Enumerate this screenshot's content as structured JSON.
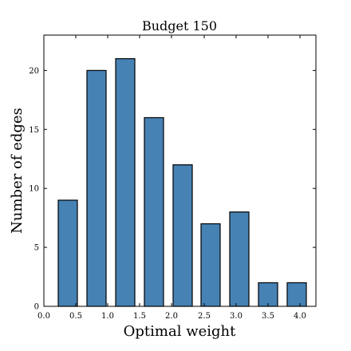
{
  "chart_data": {
    "type": "bar",
    "title": "Budget 150",
    "xlabel": "Optimal weight",
    "ylabel": "Number of edges",
    "x_tick_labels": [
      "0.0",
      "0.5",
      "1.0",
      "1.5",
      "2.0",
      "2.5",
      "3.0",
      "3.5",
      "4.0"
    ],
    "x_ticks": [
      0.0,
      0.5,
      1.0,
      1.5,
      2.0,
      2.5,
      3.0,
      3.5,
      4.0
    ],
    "y_tick_labels": [
      "0",
      "5",
      "10",
      "15",
      "20"
    ],
    "y_ticks": [
      0,
      5,
      10,
      15,
      20
    ],
    "xlim": [
      0.0,
      4.25
    ],
    "ylim": [
      0,
      23
    ],
    "bar_width": 0.35,
    "bar_color": "#4682b4",
    "bars": [
      {
        "x": 0.4,
        "value": 9
      },
      {
        "x": 0.9,
        "value": 20
      },
      {
        "x": 1.4,
        "value": 21
      },
      {
        "x": 1.9,
        "value": 16
      },
      {
        "x": 2.4,
        "value": 12
      },
      {
        "x": 2.9,
        "value": 7
      },
      {
        "x": 3.4,
        "value": 8
      },
      {
        "x": 3.9,
        "value": 2
      },
      {
        "x": 4.4,
        "value": 2
      }
    ],
    "grid": false,
    "legend": "none"
  }
}
